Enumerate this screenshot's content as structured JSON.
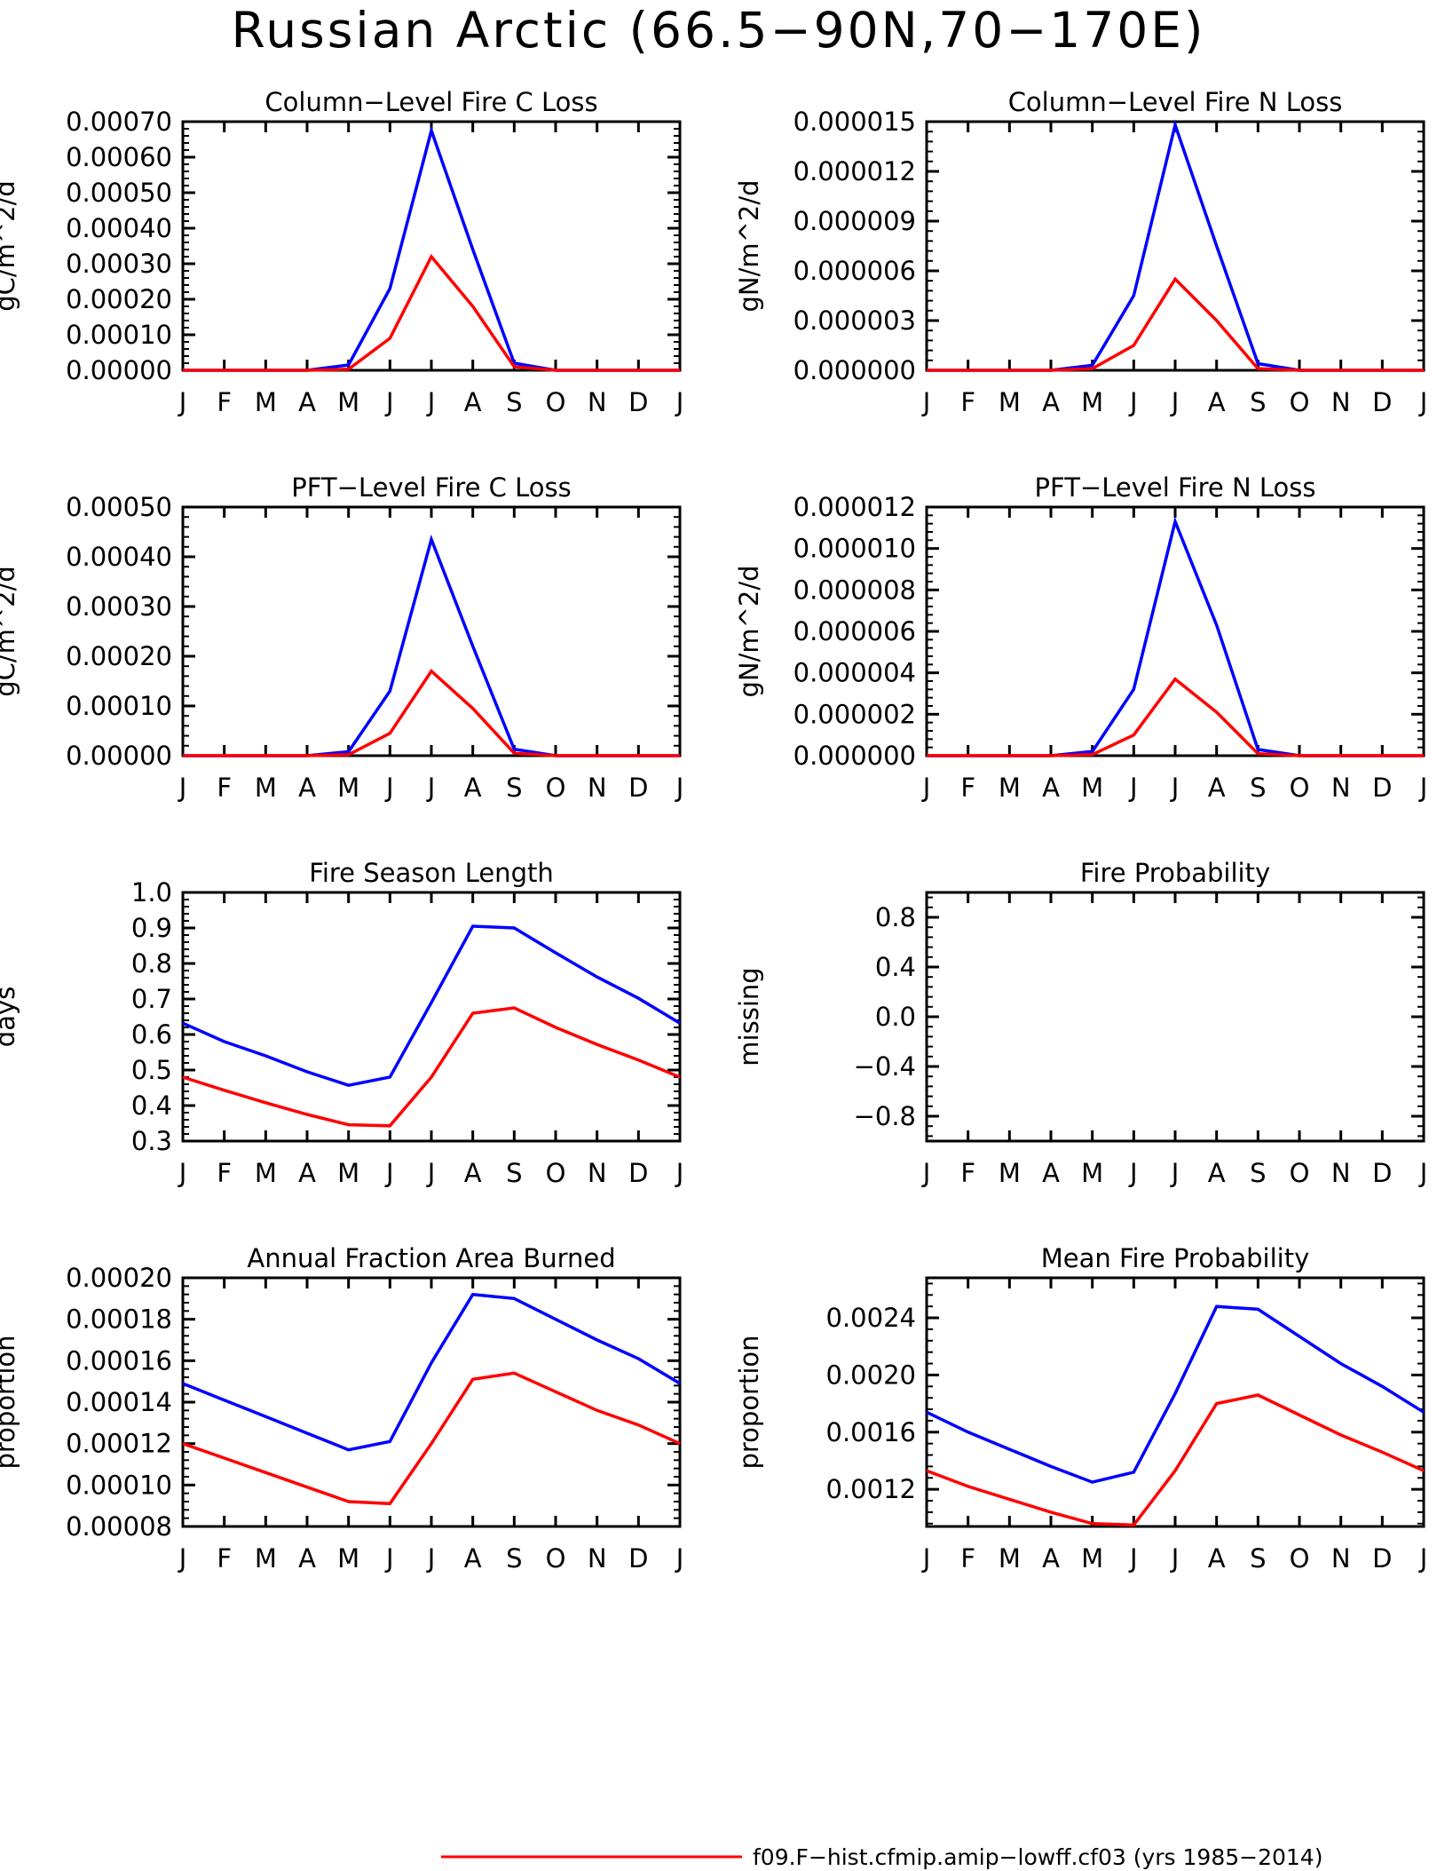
{
  "title": "Russian Arctic (66.5−90N,70−170E)",
  "months": [
    "J",
    "F",
    "M",
    "A",
    "M",
    "J",
    "J",
    "A",
    "S",
    "O",
    "N",
    "D",
    "J"
  ],
  "colors": {
    "series_a": "#0000ff",
    "series_b": "#ff0000"
  },
  "legend": {
    "entries": [
      {
        "label": "f09.F−hist.cfmip.amip−lowff.cf03 (yrs 1985−2014)",
        "color": "#ff0000"
      }
    ]
  },
  "chart_data": [
    {
      "type": "line",
      "title": "Column−Level Fire C Loss",
      "ylabel": "gC/m^2/d",
      "xlabel": "",
      "ylim": [
        0,
        0.0007
      ],
      "yticks": [
        0,
        0.0001,
        0.0002,
        0.0003,
        0.0004,
        0.0005,
        0.0006,
        0.0007
      ],
      "ytick_labels": [
        "0.00000",
        "0.00010",
        "0.00020",
        "0.00030",
        "0.00040",
        "0.00050",
        "0.00060",
        "0.00070"
      ],
      "categories": [
        "J",
        "F",
        "M",
        "A",
        "M",
        "J",
        "J",
        "A",
        "S",
        "O",
        "N",
        "D",
        "J"
      ],
      "series": [
        {
          "color": "#0000ff",
          "values": [
            0,
            0,
            0,
            0,
            1.5e-05,
            0.00023,
            0.000675,
            0.00034,
            2e-05,
            0,
            0,
            0,
            0
          ]
        },
        {
          "color": "#ff0000",
          "values": [
            0,
            0,
            0,
            0,
            3e-06,
            9e-05,
            0.00032,
            0.00018,
            1e-05,
            0,
            0,
            0,
            0
          ]
        }
      ]
    },
    {
      "type": "line",
      "title": "Column−Level Fire N Loss",
      "ylabel": "gN/m^2/d",
      "xlabel": "",
      "ylim": [
        0,
        1.5e-05
      ],
      "yticks": [
        0,
        3e-06,
        6e-06,
        9e-06,
        1.2e-05,
        1.5e-05
      ],
      "ytick_labels": [
        "0.000000",
        "0.000003",
        "0.000006",
        "0.000009",
        "0.000012",
        "0.000015"
      ],
      "categories": [
        "J",
        "F",
        "M",
        "A",
        "M",
        "J",
        "J",
        "A",
        "S",
        "O",
        "N",
        "D",
        "J"
      ],
      "series": [
        {
          "color": "#0000ff",
          "values": [
            0,
            0,
            0,
            0,
            3e-07,
            4.5e-06,
            1.48e-05,
            7.5e-06,
            4e-07,
            0,
            0,
            0,
            0
          ]
        },
        {
          "color": "#ff0000",
          "values": [
            0,
            0,
            0,
            0,
            1e-07,
            1.5e-06,
            5.5e-06,
            3e-06,
            1e-07,
            0,
            0,
            0,
            0
          ]
        }
      ]
    },
    {
      "type": "line",
      "title": "PFT−Level Fire C Loss",
      "ylabel": "gC/m^2/d",
      "xlabel": "",
      "ylim": [
        0,
        0.0005
      ],
      "yticks": [
        0,
        0.0001,
        0.0002,
        0.0003,
        0.0004,
        0.0005
      ],
      "ytick_labels": [
        "0.00000",
        "0.00010",
        "0.00020",
        "0.00030",
        "0.00040",
        "0.00050"
      ],
      "categories": [
        "J",
        "F",
        "M",
        "A",
        "M",
        "J",
        "J",
        "A",
        "S",
        "O",
        "N",
        "D",
        "J"
      ],
      "series": [
        {
          "color": "#0000ff",
          "values": [
            0,
            0,
            0,
            0,
            8e-06,
            0.00013,
            0.000435,
            0.00022,
            1.3e-05,
            0,
            0,
            0,
            0
          ]
        },
        {
          "color": "#ff0000",
          "values": [
            0,
            0,
            0,
            0,
            2e-06,
            4.5e-05,
            0.00017,
            9.5e-05,
            5e-06,
            0,
            0,
            0,
            0
          ]
        }
      ]
    },
    {
      "type": "line",
      "title": "PFT−Level Fire N Loss",
      "ylabel": "gN/m^2/d",
      "xlabel": "",
      "ylim": [
        0,
        1.2e-05
      ],
      "yticks": [
        0,
        2e-06,
        4e-06,
        6e-06,
        8e-06,
        1e-05,
        1.2e-05
      ],
      "ytick_labels": [
        "0.000000",
        "0.000002",
        "0.000004",
        "0.000006",
        "0.000008",
        "0.000010",
        "0.000012"
      ],
      "categories": [
        "J",
        "F",
        "M",
        "A",
        "M",
        "J",
        "J",
        "A",
        "S",
        "O",
        "N",
        "D",
        "J"
      ],
      "series": [
        {
          "color": "#0000ff",
          "values": [
            0,
            0,
            0,
            0,
            2e-07,
            3.2e-06,
            1.13e-05,
            6.3e-06,
            3e-07,
            0,
            0,
            0,
            0
          ]
        },
        {
          "color": "#ff0000",
          "values": [
            0,
            0,
            0,
            0,
            5e-08,
            1e-06,
            3.7e-06,
            2.1e-06,
            1e-07,
            0,
            0,
            0,
            0
          ]
        }
      ]
    },
    {
      "type": "line",
      "title": "Fire Season Length",
      "ylabel": "days",
      "xlabel": "",
      "ylim": [
        0.3,
        1.0
      ],
      "yticks": [
        0.3,
        0.4,
        0.5,
        0.6,
        0.7,
        0.8,
        0.9,
        1.0
      ],
      "ytick_labels": [
        "0.3",
        "0.4",
        "0.5",
        "0.6",
        "0.7",
        "0.8",
        "0.9",
        "1.0"
      ],
      "categories": [
        "J",
        "F",
        "M",
        "A",
        "M",
        "J",
        "J",
        "A",
        "S",
        "O",
        "N",
        "D",
        "J"
      ],
      "series": [
        {
          "color": "#0000ff",
          "values": [
            0.632,
            0.58,
            0.54,
            0.495,
            0.457,
            0.48,
            0.69,
            0.905,
            0.9,
            0.83,
            0.762,
            0.702,
            0.632
          ]
        },
        {
          "color": "#ff0000",
          "values": [
            0.48,
            0.443,
            0.408,
            0.375,
            0.346,
            0.343,
            0.48,
            0.66,
            0.675,
            0.62,
            0.572,
            0.528,
            0.48
          ]
        }
      ]
    },
    {
      "type": "line",
      "title": "Fire Probability",
      "ylabel": "missing",
      "xlabel": "",
      "ylim": [
        -1.0,
        1.0
      ],
      "yticks": [
        -0.8,
        -0.4,
        0.0,
        0.4,
        0.8
      ],
      "ytick_labels": [
        "−0.8",
        "−0.4",
        "0.0",
        "0.4",
        "0.8"
      ],
      "categories": [
        "J",
        "F",
        "M",
        "A",
        "M",
        "J",
        "J",
        "A",
        "S",
        "O",
        "N",
        "D",
        "J"
      ],
      "series": []
    },
    {
      "type": "line",
      "title": "Annual Fraction Area Burned",
      "ylabel": "proportion",
      "xlabel": "",
      "ylim": [
        8e-05,
        0.0002
      ],
      "yticks": [
        8e-05,
        0.0001,
        0.00012,
        0.00014,
        0.00016,
        0.00018,
        0.0002
      ],
      "ytick_labels": [
        "0.00008",
        "0.00010",
        "0.00012",
        "0.00014",
        "0.00016",
        "0.00018",
        "0.00020"
      ],
      "categories": [
        "J",
        "F",
        "M",
        "A",
        "M",
        "J",
        "J",
        "A",
        "S",
        "O",
        "N",
        "D",
        "J"
      ],
      "series": [
        {
          "color": "#0000ff",
          "values": [
            0.000149,
            0.000141,
            0.000133,
            0.000125,
            0.000117,
            0.000121,
            0.000159,
            0.000192,
            0.00019,
            0.00018,
            0.00017,
            0.000161,
            0.000149
          ]
        },
        {
          "color": "#ff0000",
          "values": [
            0.00012,
            0.000113,
            0.000106,
            9.9e-05,
            9.2e-05,
            9.1e-05,
            0.00012,
            0.000151,
            0.000154,
            0.000145,
            0.000136,
            0.000129,
            0.00012
          ]
        }
      ]
    },
    {
      "type": "line",
      "title": "Mean Fire Probability",
      "ylabel": "proportion",
      "xlabel": "",
      "ylim": [
        0.00094,
        0.00268
      ],
      "yticks": [
        0.0012,
        0.0016,
        0.002,
        0.0024
      ],
      "ytick_labels": [
        "0.0012",
        "0.0016",
        "0.0020",
        "0.0024"
      ],
      "categories": [
        "J",
        "F",
        "M",
        "A",
        "M",
        "J",
        "J",
        "A",
        "S",
        "O",
        "N",
        "D",
        "J"
      ],
      "series": [
        {
          "color": "#0000ff",
          "values": [
            0.00174,
            0.0016,
            0.00148,
            0.00136,
            0.00125,
            0.00132,
            0.00187,
            0.00248,
            0.00246,
            0.00227,
            0.00208,
            0.00192,
            0.00174
          ]
        },
        {
          "color": "#ff0000",
          "values": [
            0.00133,
            0.00122,
            0.00113,
            0.00104,
            0.00096,
            0.00095,
            0.00133,
            0.0018,
            0.00186,
            0.00172,
            0.00158,
            0.00146,
            0.00133
          ]
        }
      ]
    }
  ]
}
